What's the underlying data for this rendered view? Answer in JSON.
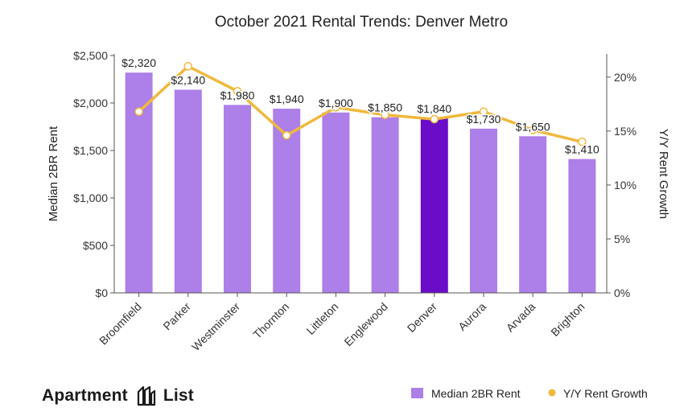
{
  "chart_data": {
    "type": "bar",
    "title": "October 2021 Rental Trends: Denver Metro",
    "ylabel": "Median 2BR Rent",
    "y2label": "Y/Y Rent Growth",
    "categories": [
      "Broomfield",
      "Parker",
      "Westminster",
      "Thornton",
      "Littleton",
      "Englewood",
      "Denver",
      "Aurora",
      "Arvada",
      "Brighton"
    ],
    "series": [
      {
        "name": "Median 2BR Rent",
        "type": "bar",
        "axis": "left",
        "values": [
          2320,
          2140,
          1980,
          1940,
          1900,
          1850,
          1840,
          1730,
          1650,
          1410
        ],
        "labels": [
          "$2,320",
          "$2,140",
          "$1,980",
          "$1,940",
          "$1,900",
          "$1,850",
          "$1,840",
          "$1,730",
          "$1,650",
          "$1,410"
        ],
        "color": "#ad7fe8",
        "highlight_category": "Denver",
        "highlight_color": "#6a0dc9"
      },
      {
        "name": "Y/Y Rent Growth",
        "type": "line",
        "axis": "right",
        "values": [
          16.8,
          21.0,
          18.7,
          14.6,
          17.2,
          16.5,
          16.1,
          16.8,
          15.1,
          14.0
        ],
        "color": "#f0b83c"
      }
    ],
    "ylim": [
      0,
      2500
    ],
    "yticks": [
      "$0",
      "$500",
      "$1,000",
      "$1,500",
      "$2,000",
      "$2,500"
    ],
    "y2lim": [
      0,
      22
    ],
    "y2ticks": [
      "0%",
      "5%",
      "10%",
      "15%",
      "20%"
    ],
    "grid": false,
    "legend_position": "bottom-right"
  },
  "brand": {
    "word1": "Apartment",
    "word2": "List"
  }
}
